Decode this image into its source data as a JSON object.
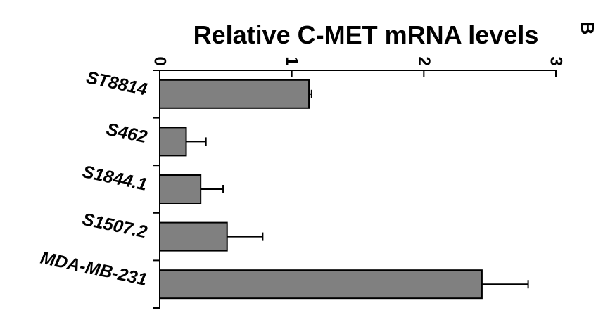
{
  "panel_label": "B",
  "chart_data": {
    "type": "bar",
    "orientation": "horizontal",
    "title": "Relative C-MET mRNA levels",
    "categories": [
      "ST8814",
      "S462",
      "S1844.1",
      "S1507.2",
      "MDA-MB-231"
    ],
    "series": [
      {
        "values": [
          1.13,
          0.2,
          0.31,
          0.51,
          2.44
        ],
        "errors": [
          0.02,
          0.15,
          0.17,
          0.27,
          0.35
        ],
        "color": "#808080"
      }
    ],
    "xlim": [
      0,
      3
    ],
    "xticks": [
      0,
      1,
      2,
      3
    ],
    "axis_position": "top",
    "grid": false,
    "legend": "none"
  }
}
